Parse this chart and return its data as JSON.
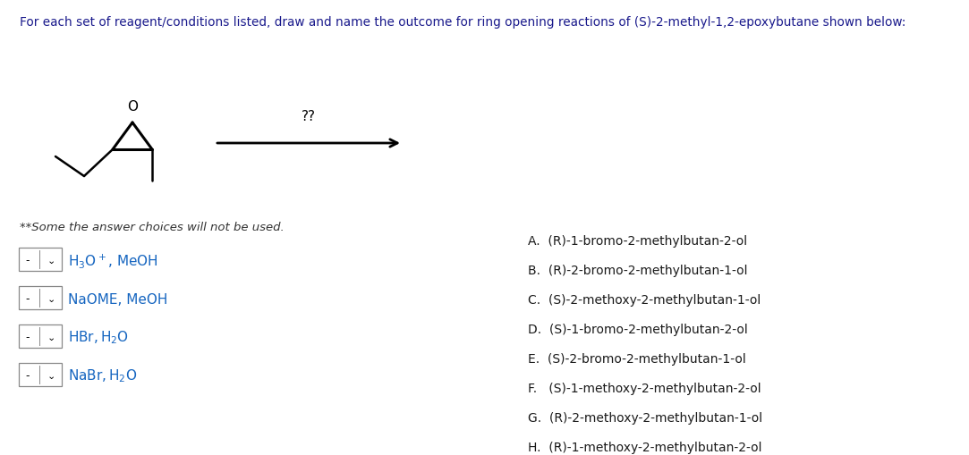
{
  "title": "For each set of reagent/conditions listed, draw and name the outcome for ring opening reactions of (S)-2-methyl-1,2-epoxybutane shown below:",
  "title_color": "#1a1a8c",
  "note": "**Some the answer choices will not be used.",
  "note_color": "#333333",
  "reagents_color": "#1565c0",
  "choices": [
    "A.  (R)-1-bromo-2-methylbutan-2-ol",
    "B.  (R)-2-bromo-2-methylbutan-1-ol",
    "C.  (S)-2-methoxy-2-methylbutan-1-ol",
    "D.  (S)-1-bromo-2-methylbutan-2-ol",
    "E.  (S)-2-bromo-2-methylbutan-1-ol",
    "F.   (S)-1-methoxy-2-methylbutan-2-ol",
    "G.  (R)-2-methoxy-2-methylbutan-1-ol",
    "H.  (R)-1-methoxy-2-methylbutan-2-ol"
  ],
  "choices_color": "#1a1a1a",
  "background_color": "#ffffff",
  "arrow_label": "??",
  "title_fontsize": 9.8,
  "note_fontsize": 9.5,
  "reagent_fontsize": 11,
  "choice_fontsize": 10
}
